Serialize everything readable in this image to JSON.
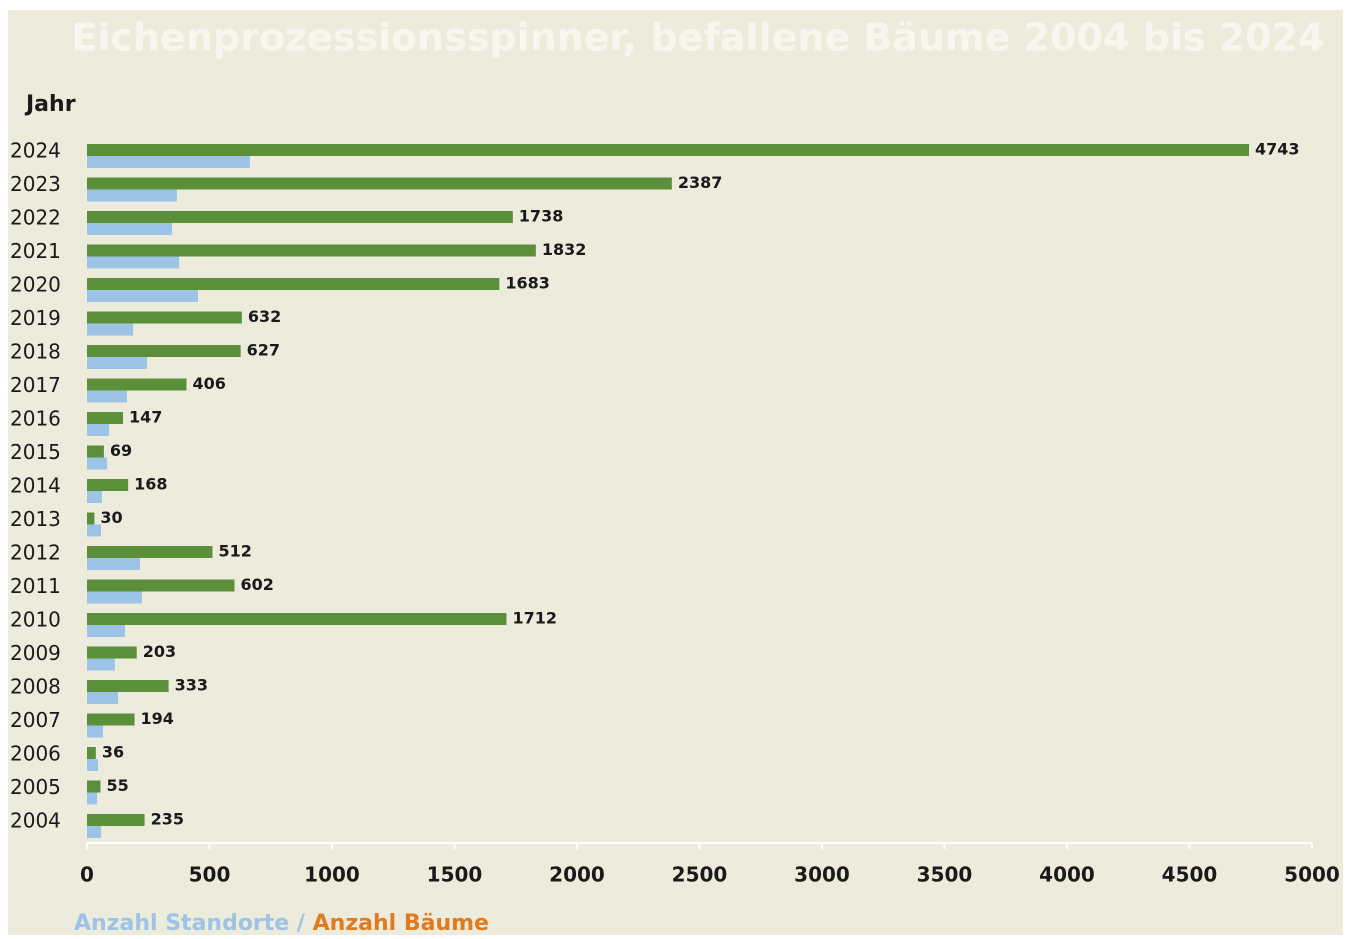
{
  "chart_data": {
    "type": "barh",
    "title": "Eichenprozessionsspinner, befallene Bäume 2004 bis 2024",
    "ylabel": "Jahr",
    "categories": [
      "2024",
      "2023",
      "2022",
      "2021",
      "2020",
      "2019",
      "2018",
      "2017",
      "2016",
      "2015",
      "2014",
      "2013",
      "2012",
      "2011",
      "2010",
      "2009",
      "2008",
      "2007",
      "2006",
      "2005",
      "2004"
    ],
    "series": [
      {
        "name": "Anzahl Bäume",
        "color": "#5b8f3a",
        "legend_color": "#e07b20",
        "values": [
          4743,
          2387,
          1738,
          1832,
          1683,
          632,
          627,
          406,
          147,
          69,
          168,
          30,
          512,
          602,
          1712,
          203,
          333,
          194,
          36,
          55,
          235
        ]
      },
      {
        "name": "Anzahl Standorte",
        "color": "#9dc3e6",
        "legend_color": "#9dc3e6",
        "values": [
          665,
          367,
          347,
          376,
          453,
          188,
          245,
          163,
          90,
          82,
          61,
          57,
          216,
          224,
          155,
          114,
          127,
          65,
          45,
          41,
          57
        ]
      }
    ],
    "legend_separator": "/",
    "xlim": [
      0,
      5000
    ],
    "xticks": [
      0,
      500,
      1000,
      1500,
      2000,
      2500,
      3000,
      3500,
      4000,
      4500,
      5000
    ]
  }
}
